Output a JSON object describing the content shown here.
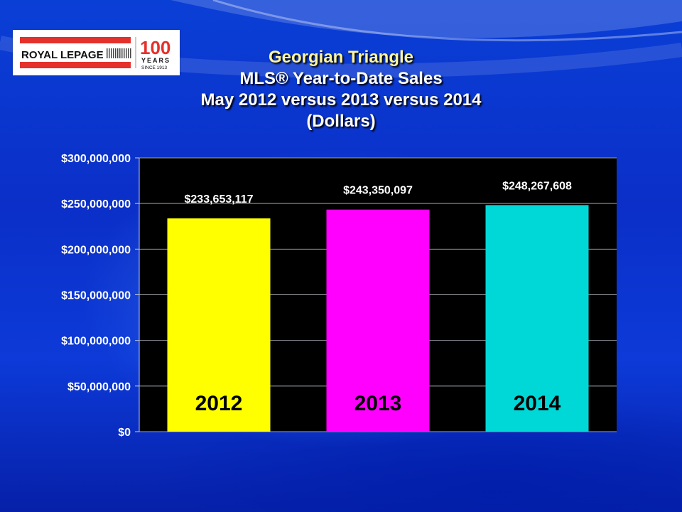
{
  "logo": {
    "brand_text": "ROYAL LEPAGE",
    "anniversary_number": "100",
    "anniversary_word": "YEARS",
    "anniversary_since": "SINCE 1913",
    "brand_color": "#e4312b"
  },
  "title_lines": [
    "Georgian Triangle",
    "MLS® Year-to-Date Sales",
    "May 2012 versus 2013 versus 2014",
    "(Dollars)"
  ],
  "chart_data": {
    "type": "bar",
    "categories": [
      "2012",
      "2013",
      "2014"
    ],
    "values": [
      233653117,
      243350097,
      248267608
    ],
    "data_labels": [
      "$233,653,117",
      "$243,350,097",
      "$248,267,608"
    ],
    "bar_colors": [
      "#ffff00",
      "#ff00ff",
      "#00d8d8"
    ],
    "ylim": [
      0,
      300000000
    ],
    "yticks": [
      0,
      50000000,
      100000000,
      150000000,
      200000000,
      250000000,
      300000000
    ],
    "ytick_labels": [
      "$0",
      "$50,000,000",
      "$100,000,000",
      "$150,000,000",
      "$200,000,000",
      "$250,000,000",
      "$300,000,000"
    ],
    "grid": true,
    "plot_background": "#000000",
    "xlabel": "",
    "ylabel": ""
  }
}
